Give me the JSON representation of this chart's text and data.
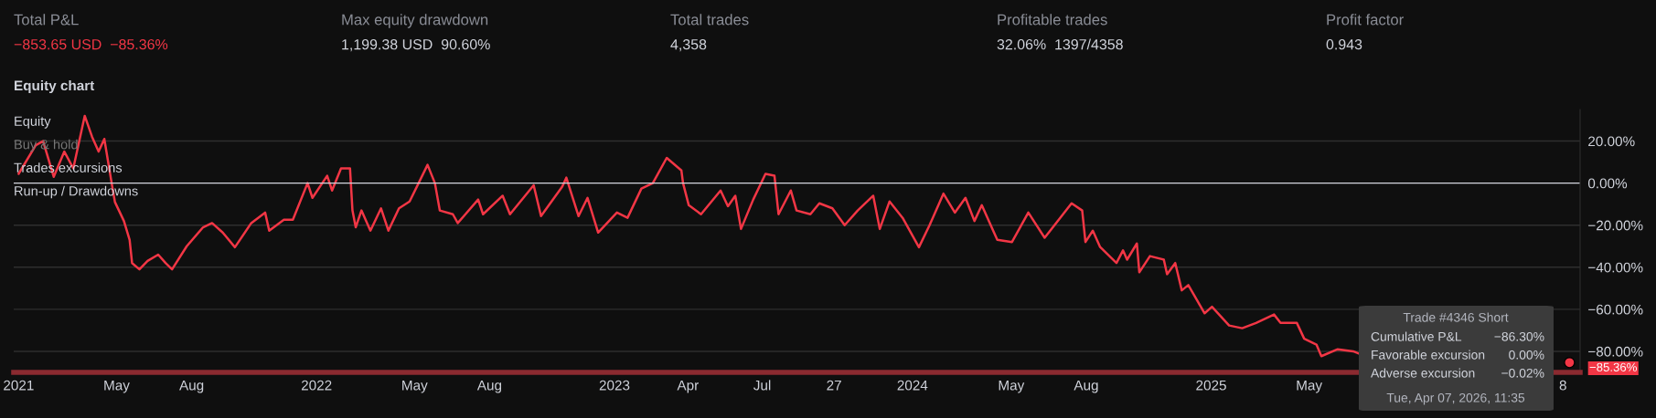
{
  "chart_data": {
    "type": "line",
    "title": "Equity chart",
    "annotations": [
      "Total P&L",
      "−853.65 USD  −85.36%",
      "Max equity drawdown",
      "1,199.38 USD  90.60%",
      "Total trades",
      "4,358",
      "Profitable trades",
      "32.06%  1397/4358",
      "Profit factor",
      "0.943",
      "Equity",
      "Buy & hold",
      "Trades excursions",
      "Run-up / Drawdowns",
      "Trade #4346 Short",
      "Cumulative P&L",
      "−86.30%",
      "Favorable excursion",
      "0.00%",
      "Adverse excursion",
      "−0.02%",
      "Tue, Apr 07, 2026, 11:35",
      {
        "text": "−85.36%",
        "x": "2026-03-16",
        "y": -85.36
      }
    ],
    "x": [
      "2021-01-01",
      "2021-01-22",
      "2021-01-31",
      "2021-02-13",
      "2021-02-26",
      "2021-03-09",
      "2021-03-23",
      "2021-04-01",
      "2021-04-09",
      "2021-04-16",
      "2021-04-25",
      "2021-04-29",
      "2021-05-10",
      "2021-05-17",
      "2021-05-20",
      "2021-05-29",
      "2021-06-08",
      "2021-06-21",
      "2021-06-30",
      "2021-07-08",
      "2021-07-26",
      "2021-08-15",
      "2021-08-26",
      "2021-09-08",
      "2021-09-23",
      "2021-10-13",
      "2021-10-30",
      "2021-11-04",
      "2021-11-22",
      "2021-12-03",
      "2021-12-21",
      "2021-12-27",
      "2022-01-14",
      "2022-01-20",
      "2022-01-31",
      "2022-02-11",
      "2022-02-14",
      "2022-02-18",
      "2022-02-25",
      "2022-03-08",
      "2022-03-21",
      "2022-03-30",
      "2022-04-12",
      "2022-04-25",
      "2022-05-17",
      "2022-05-26",
      "2022-06-01",
      "2022-06-17",
      "2022-06-23",
      "2022-07-18",
      "2022-07-24",
      "2022-08-17",
      "2022-08-26",
      "2022-09-24",
      "2022-10-03",
      "2022-10-29",
      "2022-11-03",
      "2022-11-18",
      "2022-11-29",
      "2022-12-12",
      "2023-01-04",
      "2023-01-17",
      "2023-02-03",
      "2023-02-17",
      "2023-03-06",
      "2023-03-24",
      "2023-03-26",
      "2023-04-02",
      "2023-04-17",
      "2023-05-11",
      "2023-05-20",
      "2023-05-29",
      "2023-06-05",
      "2023-06-20",
      "2023-07-05",
      "2023-07-16",
      "2023-07-21",
      "2023-08-05",
      "2023-08-12",
      "2023-08-29",
      "2023-09-09",
      "2023-09-25",
      "2023-10-10",
      "2023-10-26",
      "2023-11-14",
      "2023-11-22",
      "2023-12-04",
      "2023-12-20",
      "2024-01-09",
      "2024-01-22",
      "2024-02-08",
      "2024-02-22",
      "2024-03-06",
      "2024-03-17",
      "2024-03-26",
      "2024-04-14",
      "2024-05-02",
      "2024-05-22",
      "2024-06-11",
      "2024-07-14",
      "2024-07-27",
      "2024-07-31",
      "2024-08-09",
      "2024-08-18",
      "2024-09-07",
      "2024-09-15",
      "2024-09-20",
      "2024-10-02",
      "2024-10-05",
      "2024-10-18",
      "2024-11-04",
      "2024-11-08",
      "2024-11-18",
      "2024-11-26",
      "2024-12-04",
      "2024-12-24",
      "2025-01-02",
      "2025-01-23",
      "2025-02-08",
      "2025-02-25",
      "2025-03-19",
      "2025-03-27",
      "2025-04-16",
      "2025-04-25",
      "2025-05-10",
      "2025-05-16",
      "2025-06-05",
      "2025-06-24",
      "2025-07-03",
      "2025-10-30",
      "2026-03-01",
      "2026-03-16"
    ],
    "series": [
      {
        "color": "#f23645",
        "values": [
          4.4,
          18,
          20,
          3,
          15,
          7,
          32,
          22,
          15,
          21,
          0,
          -9,
          -18,
          -27,
          -38,
          -41,
          -37,
          -34,
          -38,
          -41,
          -30,
          -21,
          -19,
          -23.5,
          -30.5,
          -19,
          -14,
          -22.6,
          -17.4,
          -17.4,
          0,
          -7,
          3.5,
          -3.5,
          7,
          7,
          -13,
          -21,
          -13,
          -22.6,
          -12,
          -22.6,
          -12,
          -8.7,
          8.7,
          0,
          -13,
          -14.8,
          -19,
          -7.8,
          -14.8,
          -6,
          -14.8,
          -1,
          -15.7,
          -1.7,
          2.6,
          -15.7,
          -7,
          -23.5,
          -14,
          -16.5,
          -2.6,
          0,
          12,
          6,
          0,
          -10.5,
          -14.8,
          -3.5,
          -11,
          -6,
          -21.8,
          -7.8,
          4.4,
          3.5,
          -14.8,
          -3.5,
          -13,
          -14.8,
          -9.6,
          -12,
          -20,
          -13,
          -6,
          -21.8,
          -8.7,
          -16.5,
          -30.5,
          -20,
          -5,
          -14,
          -7,
          -18,
          -10.5,
          -27,
          -28,
          -14,
          -26,
          -9.6,
          -13,
          -28,
          -22.6,
          -30.4,
          -38,
          -32,
          -36.4,
          -28.7,
          -42.4,
          -34.7,
          -36.4,
          -43.3,
          -38,
          -51,
          -48.5,
          -61.9,
          -58.8,
          -67.7,
          -69,
          -66.5,
          -62.5,
          -66.5,
          -66.5,
          -74,
          -76.8,
          -82.3,
          -79,
          -80,
          -81.4,
          null,
          null,
          -85.36
        ]
      }
    ],
    "xlim": [
      "2020-12-26",
      "2026-03-29"
    ],
    "xticks": [
      {
        "value": "2021-01-01",
        "label": "2021"
      },
      {
        "value": "2021-05-01",
        "label": "May"
      },
      {
        "value": "2021-08-01",
        "label": "Aug"
      },
      {
        "value": "2022-01-01",
        "label": "2022"
      },
      {
        "value": "2022-05-01",
        "label": "May"
      },
      {
        "value": "2022-08-01",
        "label": "Aug"
      },
      {
        "value": "2023-01-01",
        "label": "2023"
      },
      {
        "value": "2023-04-01",
        "label": "Apr"
      },
      {
        "value": "2023-07-01",
        "label": "Jul"
      },
      {
        "value": "2023-09-27",
        "label": "27"
      },
      {
        "value": "2024-01-01",
        "label": "2024"
      },
      {
        "value": "2024-05-01",
        "label": "May"
      },
      {
        "value": "2024-08-01",
        "label": "Aug"
      },
      {
        "value": "2025-01-01",
        "label": "2025"
      },
      {
        "value": "2025-05-01",
        "label": "May"
      },
      {
        "value": "2026-03-08",
        "label": "8"
      }
    ],
    "ylim": [
      -90,
      35
    ],
    "yticks": [
      {
        "value": 20,
        "label": "20.00%"
      },
      {
        "value": 0,
        "label": "0.00%"
      },
      {
        "value": -20,
        "label": "−20.00%"
      },
      {
        "value": -40,
        "label": "−40.00%"
      },
      {
        "value": -60,
        "label": "−60.00%"
      },
      {
        "value": -80,
        "label": "−80.00%"
      }
    ],
    "ref_lines": [
      {
        "axis": "y",
        "value": 0,
        "color": "#d1d4dc"
      }
    ],
    "grid": "y",
    "legend": false,
    "marker": "none",
    "line_style": "solid"
  }
}
